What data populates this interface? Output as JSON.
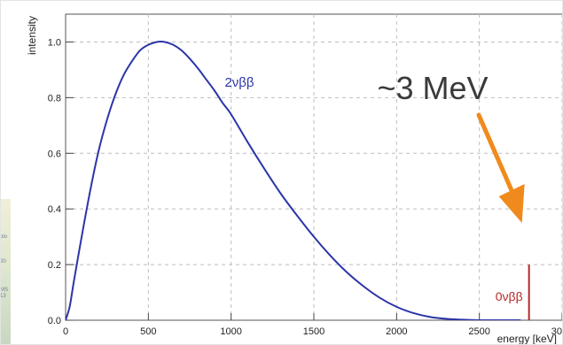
{
  "chart_data": {
    "type": "line",
    "ylabel": "intensity",
    "xlabel": "energy [keV]",
    "xlim": [
      0,
      3000
    ],
    "ylim": [
      0,
      1.1
    ],
    "grid": true,
    "x_ticks": [
      "0",
      "500",
      "1000",
      "1500",
      "2000",
      "2500",
      "3000"
    ],
    "y_ticks": [
      "0.0",
      "0.2",
      "0.4",
      "0.6",
      "0.8",
      "1.0"
    ],
    "series": [
      {
        "name": "2νββ",
        "color": "#2c35a8",
        "x": [
          0,
          25,
          50,
          100,
          150,
          200,
          250,
          300,
          350,
          400,
          450,
          500,
          550,
          600,
          650,
          700,
          750,
          800,
          850,
          900,
          950,
          1000,
          1100,
          1200,
          1300,
          1400,
          1500,
          1600,
          1700,
          1800,
          1900,
          2000,
          2100,
          2200,
          2300,
          2400,
          2500,
          2550,
          2600,
          2650,
          2700,
          2750
        ],
        "y": [
          0.0,
          0.05,
          0.14,
          0.31,
          0.47,
          0.61,
          0.72,
          0.81,
          0.88,
          0.93,
          0.97,
          0.99,
          1.0,
          1.0,
          0.99,
          0.97,
          0.94,
          0.905,
          0.865,
          0.825,
          0.78,
          0.74,
          0.64,
          0.545,
          0.455,
          0.375,
          0.3,
          0.232,
          0.172,
          0.122,
          0.08,
          0.048,
          0.026,
          0.012,
          0.005,
          0.002,
          0.0,
          0.0,
          0.0,
          0.0,
          0.0,
          0.0
        ]
      },
      {
        "name": "0νββ",
        "color": "#b52a2a",
        "type": "spike",
        "x": [
          2800,
          2800
        ],
        "y": [
          0.0,
          0.2
        ]
      }
    ],
    "annotations": [
      {
        "text": "~3 MeV",
        "arrow_color": "#f08a1c",
        "points_to_x": 2800
      }
    ]
  },
  "left_strip": {
    "fragments": [
      "olo",
      "20",
      "MS",
      "13"
    ]
  }
}
